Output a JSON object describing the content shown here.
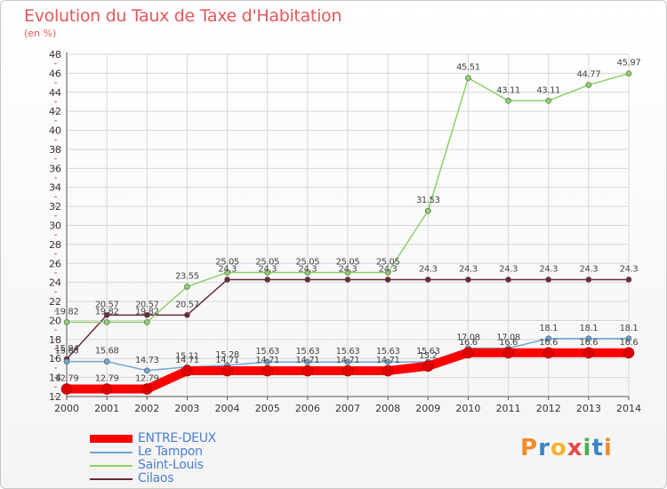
{
  "header": {
    "title": "Evolution du Taux de Taxe d'Habitation",
    "unit": "(en %)"
  },
  "logo": {
    "letters": [
      "P",
      "r",
      "o",
      "x",
      "i",
      "t",
      "i"
    ],
    "colors": [
      "#f28c28",
      "#3a86c8",
      "#f2b531",
      "#e24a4a",
      "#4caf50",
      "#3a86c8",
      "#f28c28"
    ]
  },
  "chart_data": {
    "type": "line",
    "x": [
      "2000",
      "2001",
      "2002",
      "2003",
      "2004",
      "2005",
      "2006",
      "2007",
      "2008",
      "2009",
      "2010",
      "2011",
      "2012",
      "2013",
      "2014"
    ],
    "ylim": [
      12,
      48
    ],
    "yticks": [
      12,
      14,
      16,
      18,
      20,
      22,
      24,
      26,
      28,
      30,
      32,
      34,
      36,
      38,
      40,
      42,
      44,
      46,
      48
    ],
    "grid": true,
    "legend": "bottom-left",
    "series": [
      {
        "name": "ENTRE-DEUX",
        "color": "#ff0000",
        "values": [
          12.79,
          12.79,
          12.79,
          14.71,
          14.71,
          14.71,
          14.71,
          14.71,
          14.71,
          15.2,
          16.6,
          16.6,
          16.6,
          16.6,
          16.6
        ],
        "labels": [
          "12.79",
          "12.79",
          "12.79",
          "14.71",
          "14.71",
          "14.71",
          "14.71",
          "14.71",
          "14.71",
          "15.2",
          "16.6",
          "16.6",
          "16.6",
          "16.6",
          "16.6"
        ]
      },
      {
        "name": "Le Tampon",
        "color": "#6fa8d8",
        "values": [
          15.68,
          15.68,
          14.73,
          15.11,
          15.28,
          15.63,
          15.63,
          15.63,
          15.63,
          15.63,
          17.08,
          17.08,
          18.1,
          18.1,
          18.1
        ],
        "labels": [
          "15.68",
          "15.68",
          "14.73",
          "15.11",
          "15.28",
          "15.63",
          "15.63",
          "15.63",
          "15.63",
          "15.63",
          "17.08",
          "17.08",
          "18.1",
          "18.1",
          "18.1"
        ]
      },
      {
        "name": "Saint-Louis",
        "color": "#8ed06a",
        "values": [
          19.82,
          19.82,
          19.82,
          23.55,
          25.05,
          25.05,
          25.05,
          25.05,
          25.05,
          31.53,
          45.51,
          43.11,
          43.11,
          44.77,
          45.97
        ],
        "labels": [
          "19.82",
          "19.82",
          "19.82",
          "23.55",
          "25.05",
          "25.05",
          "25.05",
          "25.05",
          "25.05",
          "31.53",
          "45.51",
          "43.11",
          "43.11",
          "44.77",
          "45.97"
        ]
      },
      {
        "name": "Cilaos",
        "color": "#6a2a35",
        "values": [
          15.94,
          20.57,
          20.57,
          20.57,
          24.3,
          24.3,
          24.3,
          24.3,
          24.3,
          24.3,
          24.3,
          24.3,
          24.3,
          24.3,
          24.3
        ],
        "labels": [
          "15.94",
          "20.57",
          "20.57",
          "20.57",
          "24.3",
          "24.3",
          "24.3",
          "24.3",
          "24.3",
          "24.3",
          "24.3",
          "24.3",
          "24.3",
          "24.3",
          "24.3"
        ]
      }
    ]
  }
}
